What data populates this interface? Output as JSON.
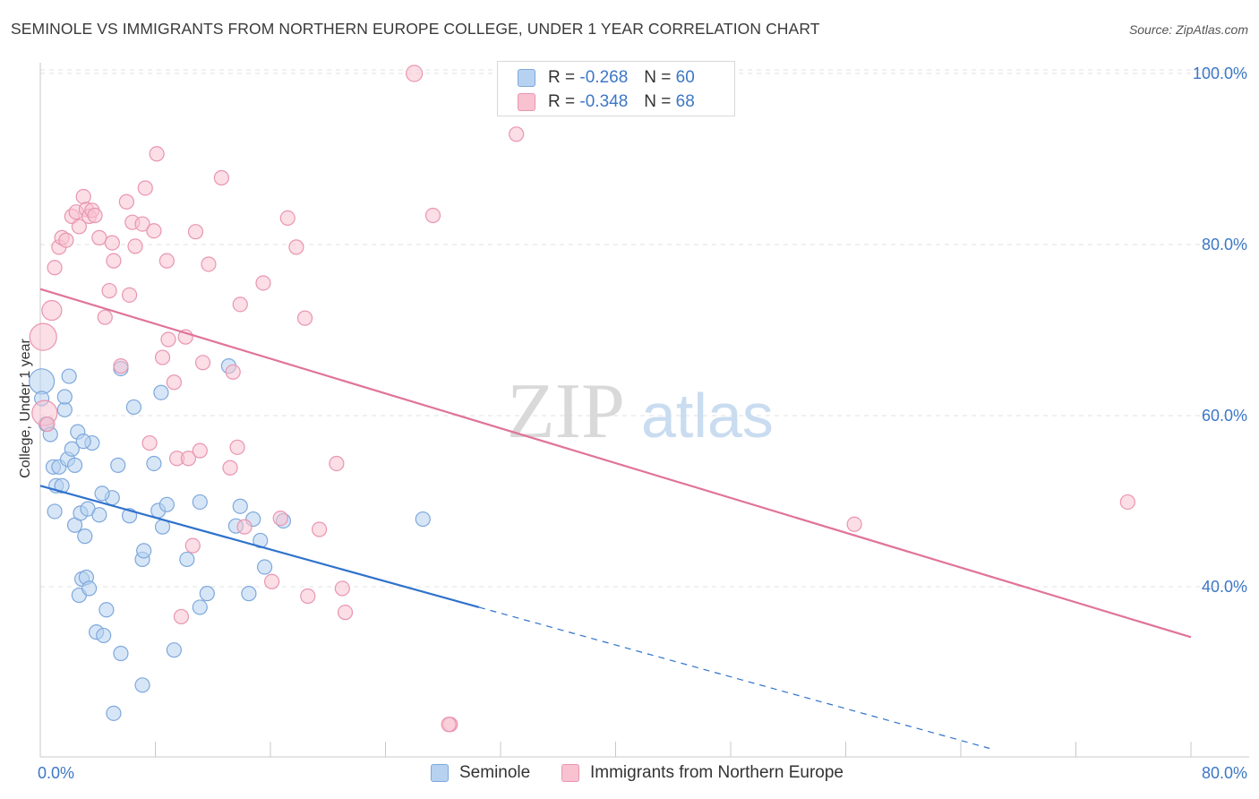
{
  "header": {
    "title": "SEMINOLE VS IMMIGRANTS FROM NORTHERN EUROPE COLLEGE, UNDER 1 YEAR CORRELATION CHART",
    "source": "Source: ZipAtlas.com"
  },
  "watermark": {
    "zip": "ZIP",
    "atlas": "atlas"
  },
  "legend_top": {
    "rows": [
      {
        "r_label": "R =",
        "r_value": "-0.268",
        "n_label": "N =",
        "n_value": "60"
      },
      {
        "r_label": "R =",
        "r_value": "-0.348",
        "n_label": "N =",
        "n_value": "68"
      }
    ]
  },
  "colors": {
    "blue_fill": "#b7d1f1",
    "blue_stroke": "#7ea8dc",
    "blue_line": "#2f72cc",
    "pink_fill": "#f8c2d1",
    "pink_stroke": "#e995b0",
    "pink_line": "#e0739a",
    "tick_text": "#3c77c6",
    "grid": "#e2e2e2"
  },
  "chart_data": {
    "type": "scatter",
    "title": "SEMINOLE VS IMMIGRANTS FROM NORTHERN EUROPE COLLEGE, UNDER 1 YEAR CORRELATION CHART",
    "xlabel": "",
    "ylabel": "College, Under 1 year",
    "xlim": [
      0,
      80
    ],
    "ylim": [
      20,
      102
    ],
    "x_ticks": [
      0,
      8,
      16,
      24,
      32,
      40,
      48,
      56,
      64,
      72,
      80
    ],
    "x_tick_labels": {
      "min": "0.0%",
      "max": "80.0%"
    },
    "y_ticks": [
      40,
      60,
      80,
      100
    ],
    "y_tick_labels": [
      "40.0%",
      "60.0%",
      "80.0%",
      "100.0%"
    ],
    "legend": [
      "Seminole",
      "Immigrants from Northern Europe"
    ],
    "series": [
      {
        "name": "Seminole",
        "color": "blue",
        "r": -0.268,
        "n": 60,
        "trend": {
          "x0": 0,
          "y0": 51.8,
          "x1": 30.5,
          "y1": 37.6,
          "dash_to_x": 66,
          "dash_to_y": 21.1
        },
        "points": [
          [
            0.1,
            64.0
          ],
          [
            0.1,
            62.0
          ],
          [
            0.4,
            59.0
          ],
          [
            0.7,
            57.8
          ],
          [
            0.9,
            54.0
          ],
          [
            1.0,
            48.8
          ],
          [
            1.1,
            51.8
          ],
          [
            1.3,
            54.0
          ],
          [
            1.5,
            51.8
          ],
          [
            1.7,
            60.7
          ],
          [
            1.7,
            62.2
          ],
          [
            1.9,
            54.9
          ],
          [
            2.0,
            64.6
          ],
          [
            2.2,
            56.1
          ],
          [
            2.4,
            47.2
          ],
          [
            2.4,
            54.2
          ],
          [
            2.6,
            58.1
          ],
          [
            2.7,
            39.0
          ],
          [
            2.8,
            48.6
          ],
          [
            2.9,
            40.9
          ],
          [
            3.1,
            45.9
          ],
          [
            3.2,
            41.1
          ],
          [
            3.3,
            49.1
          ],
          [
            3.4,
            39.8
          ],
          [
            3.6,
            56.8
          ],
          [
            3.9,
            34.7
          ],
          [
            4.1,
            48.4
          ],
          [
            4.4,
            34.3
          ],
          [
            4.6,
            37.3
          ],
          [
            5.0,
            50.4
          ],
          [
            5.1,
            25.2
          ],
          [
            5.4,
            54.2
          ],
          [
            5.6,
            32.2
          ],
          [
            6.2,
            48.3
          ],
          [
            6.5,
            61.0
          ],
          [
            7.1,
            28.5
          ],
          [
            7.1,
            43.2
          ],
          [
            7.2,
            44.2
          ],
          [
            7.9,
            54.4
          ],
          [
            8.2,
            48.9
          ],
          [
            8.4,
            62.7
          ],
          [
            8.5,
            47.0
          ],
          [
            8.8,
            49.6
          ],
          [
            9.3,
            32.6
          ],
          [
            10.2,
            43.2
          ],
          [
            11.1,
            49.9
          ],
          [
            11.1,
            37.6
          ],
          [
            11.6,
            39.2
          ],
          [
            13.1,
            65.8
          ],
          [
            13.6,
            47.1
          ],
          [
            13.9,
            49.4
          ],
          [
            14.5,
            39.2
          ],
          [
            14.8,
            47.9
          ],
          [
            15.3,
            45.4
          ],
          [
            15.6,
            42.3
          ],
          [
            16.9,
            47.7
          ],
          [
            26.6,
            47.9
          ],
          [
            5.6,
            65.5
          ],
          [
            4.3,
            50.9
          ],
          [
            3.0,
            57.0
          ]
        ],
        "sizes": [
          28,
          16,
          16,
          16,
          16,
          16,
          16,
          16,
          16,
          16,
          16,
          16,
          16,
          16,
          16,
          16,
          16,
          16,
          16,
          16,
          16,
          16,
          16,
          16,
          16,
          16,
          16,
          16,
          16,
          16,
          16,
          16,
          16,
          16,
          16,
          16,
          16,
          16,
          16,
          16,
          16,
          16,
          16,
          16,
          16,
          16,
          16,
          16,
          16,
          16,
          16,
          16,
          16,
          16,
          16,
          16,
          16,
          16,
          16,
          16
        ]
      },
      {
        "name": "Immigrants from Northern Europe",
        "color": "pink",
        "r": -0.348,
        "n": 68,
        "trend": {
          "x0": 0,
          "y0": 74.8,
          "x1": 80,
          "y1": 34.1
        },
        "points": [
          [
            0.2,
            69.2
          ],
          [
            0.3,
            60.3
          ],
          [
            0.5,
            59.0
          ],
          [
            0.8,
            72.3
          ],
          [
            1.0,
            77.3
          ],
          [
            1.3,
            79.7
          ],
          [
            1.5,
            80.8
          ],
          [
            1.8,
            80.5
          ],
          [
            2.2,
            83.3
          ],
          [
            2.5,
            83.8
          ],
          [
            2.7,
            82.1
          ],
          [
            3.0,
            85.6
          ],
          [
            3.2,
            84.1
          ],
          [
            3.4,
            83.3
          ],
          [
            3.6,
            84.0
          ],
          [
            3.8,
            83.4
          ],
          [
            4.1,
            80.8
          ],
          [
            4.5,
            71.5
          ],
          [
            4.8,
            74.6
          ],
          [
            5.0,
            80.2
          ],
          [
            5.1,
            78.1
          ],
          [
            5.6,
            65.8
          ],
          [
            6.0,
            85.0
          ],
          [
            6.2,
            74.1
          ],
          [
            6.4,
            82.6
          ],
          [
            6.6,
            79.8
          ],
          [
            7.1,
            82.4
          ],
          [
            7.3,
            86.6
          ],
          [
            7.6,
            56.8
          ],
          [
            7.9,
            81.6
          ],
          [
            8.1,
            90.6
          ],
          [
            8.5,
            66.8
          ],
          [
            8.8,
            78.1
          ],
          [
            8.9,
            68.9
          ],
          [
            9.3,
            63.9
          ],
          [
            9.5,
            55.0
          ],
          [
            9.8,
            36.5
          ],
          [
            10.1,
            69.2
          ],
          [
            10.3,
            55.0
          ],
          [
            10.6,
            44.8
          ],
          [
            10.8,
            81.5
          ],
          [
            11.1,
            55.9
          ],
          [
            11.3,
            66.2
          ],
          [
            11.7,
            77.7
          ],
          [
            12.6,
            87.8
          ],
          [
            13.2,
            53.9
          ],
          [
            13.4,
            65.1
          ],
          [
            13.7,
            56.3
          ],
          [
            13.9,
            73.0
          ],
          [
            14.2,
            47.0
          ],
          [
            15.5,
            75.5
          ],
          [
            16.1,
            40.6
          ],
          [
            16.7,
            48.0
          ],
          [
            17.2,
            83.1
          ],
          [
            17.8,
            79.7
          ],
          [
            18.4,
            71.4
          ],
          [
            18.6,
            38.9
          ],
          [
            19.4,
            46.7
          ],
          [
            20.6,
            54.4
          ],
          [
            21.0,
            39.8
          ],
          [
            21.2,
            37.0
          ],
          [
            26.0,
            100.0
          ],
          [
            27.3,
            83.4
          ],
          [
            28.5,
            23.9
          ],
          [
            33.1,
            92.9
          ],
          [
            56.6,
            47.3
          ],
          [
            75.6,
            49.9
          ],
          [
            28.4,
            23.9
          ]
        ],
        "sizes": [
          30,
          28,
          16,
          22,
          16,
          16,
          16,
          16,
          16,
          16,
          16,
          16,
          16,
          16,
          16,
          16,
          16,
          16,
          16,
          16,
          16,
          16,
          16,
          16,
          16,
          16,
          16,
          16,
          16,
          16,
          16,
          16,
          16,
          16,
          16,
          16,
          16,
          16,
          16,
          16,
          16,
          16,
          16,
          16,
          16,
          16,
          16,
          16,
          16,
          16,
          16,
          16,
          16,
          16,
          16,
          16,
          16,
          16,
          16,
          16,
          16,
          18,
          16,
          16,
          16,
          16,
          16,
          16
        ]
      }
    ]
  }
}
